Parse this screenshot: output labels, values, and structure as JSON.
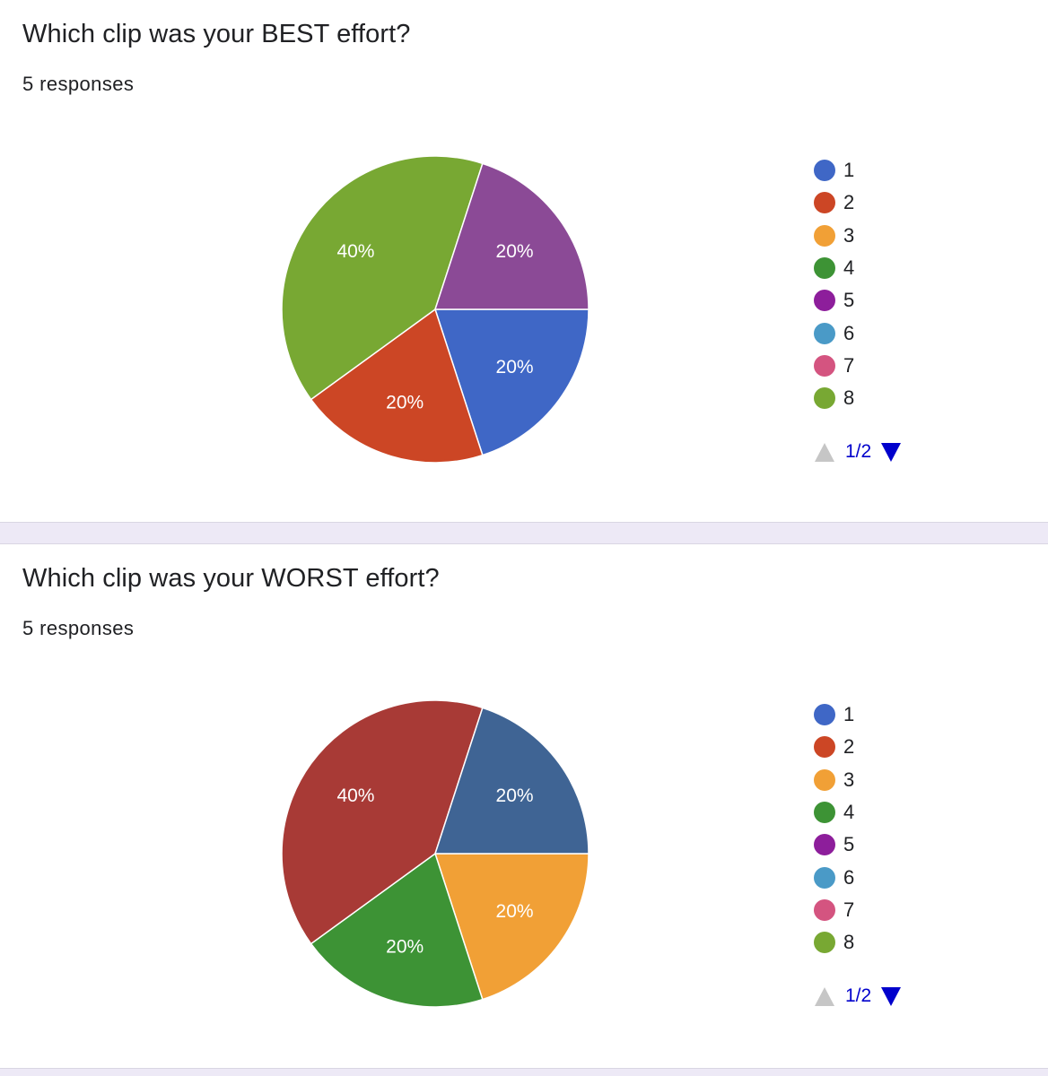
{
  "questions": [
    {
      "title": "Which clip was your BEST effort?",
      "responses": "5 responses",
      "pager": "1/2"
    },
    {
      "title": "Which clip was your WORST effort?",
      "responses": "5 responses",
      "pager": "1/2"
    }
  ],
  "chart_data": [
    {
      "type": "pie",
      "title": "Which clip was your BEST effort?",
      "legend_placement": "right",
      "legend": [
        {
          "label": "1",
          "color": "#3f67c6"
        },
        {
          "label": "2",
          "color": "#cc4625"
        },
        {
          "label": "3",
          "color": "#f1a036"
        },
        {
          "label": "4",
          "color": "#3d9335"
        },
        {
          "label": "5",
          "color": "#8d1e9b"
        },
        {
          "label": "6",
          "color": "#4a9ac7"
        },
        {
          "label": "7",
          "color": "#d45480"
        },
        {
          "label": "8",
          "color": "#78a833"
        }
      ],
      "slices": [
        {
          "label": "1",
          "value": 20,
          "text": "20%",
          "color": "#3f67c6"
        },
        {
          "label": "2",
          "value": 20,
          "text": "20%",
          "color": "#cc4625"
        },
        {
          "label": "8",
          "value": 40,
          "text": "40%",
          "color": "#78a833"
        },
        {
          "label": "5",
          "value": 20,
          "text": "20%",
          "color": "#8b4a96"
        }
      ]
    },
    {
      "type": "pie",
      "title": "Which clip was your WORST effort?",
      "legend_placement": "right",
      "legend": [
        {
          "label": "1",
          "color": "#3f67c6"
        },
        {
          "label": "2",
          "color": "#cc4625"
        },
        {
          "label": "3",
          "color": "#f1a036"
        },
        {
          "label": "4",
          "color": "#3d9335"
        },
        {
          "label": "5",
          "color": "#8d1e9b"
        },
        {
          "label": "6",
          "color": "#4a9ac7"
        },
        {
          "label": "7",
          "color": "#d45480"
        },
        {
          "label": "8",
          "color": "#78a833"
        }
      ],
      "slices": [
        {
          "value": 20,
          "text": "20%",
          "color": "#f1a036"
        },
        {
          "value": 20,
          "text": "20%",
          "color": "#3d9335"
        },
        {
          "value": 40,
          "text": "40%",
          "color": "#a83a36"
        },
        {
          "value": 20,
          "text": "20%",
          "color": "#3f6494"
        }
      ]
    }
  ]
}
